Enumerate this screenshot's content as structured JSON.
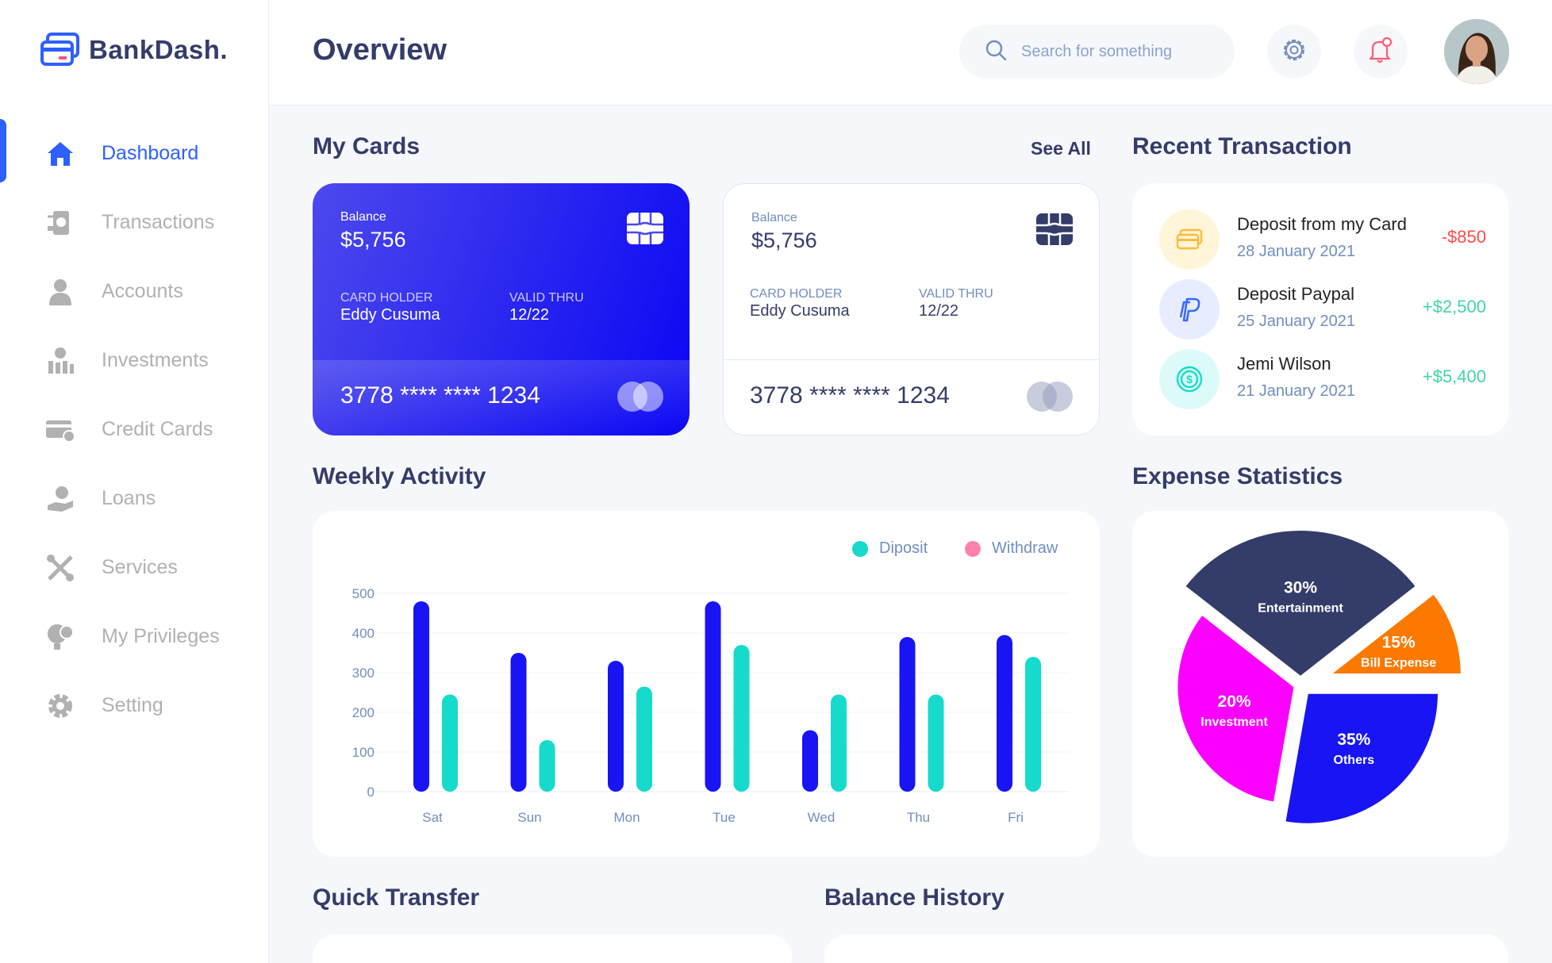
{
  "app": {
    "brand": "BankDash."
  },
  "sidebar": {
    "items": [
      {
        "label": "Dashboard",
        "icon": "home-icon",
        "active": true
      },
      {
        "label": "Transactions",
        "icon": "transfer-icon"
      },
      {
        "label": "Accounts",
        "icon": "user-icon"
      },
      {
        "label": "Investments",
        "icon": "economic-investment-icon"
      },
      {
        "label": "Credit Cards",
        "icon": "credit-card-icon"
      },
      {
        "label": "Loans",
        "icon": "loan-icon"
      },
      {
        "label": "Services",
        "icon": "service-icon"
      },
      {
        "label": "My Privileges",
        "icon": "econometrics-icon"
      },
      {
        "label": "Setting",
        "icon": "settings-icon"
      }
    ]
  },
  "header": {
    "title": "Overview",
    "search_placeholder": "Search for something"
  },
  "my_cards": {
    "title": "My Cards",
    "see_all": "See All",
    "cards": [
      {
        "balance_label": "Balance",
        "balance": "$5,756",
        "holder_label": "CARD HOLDER",
        "holder": "Eddy Cusuma",
        "valid_label": "VALID THRU",
        "valid": "12/22",
        "number": "3778 **** **** 1234"
      },
      {
        "balance_label": "Balance",
        "balance": "$5,756",
        "holder_label": "CARD HOLDER",
        "holder": "Eddy Cusuma",
        "valid_label": "VALID THRU",
        "valid": "12/22",
        "number": "3778 **** **** 1234"
      }
    ]
  },
  "recent_transaction": {
    "title": "Recent Transaction",
    "items": [
      {
        "title": "Deposit from my Card",
        "date": "28 January 2021",
        "amount": "-$850",
        "icon": "card-icon",
        "color": "#ff4b4a"
      },
      {
        "title": "Deposit Paypal",
        "date": "25 January 2021",
        "amount": "+$2,500",
        "icon": "paypal-icon",
        "color": "#41d4a8"
      },
      {
        "title": "Jemi Wilson",
        "date": "21 January 2021",
        "amount": "+$5,400",
        "icon": "dollar-coin-icon",
        "color": "#41d4a8"
      }
    ]
  },
  "weekly_activity": {
    "title": "Weekly Activity"
  },
  "expense_statistics": {
    "title": "Expense Statistics"
  },
  "quick_transfer": {
    "title": "Quick Transfer"
  },
  "balance_history": {
    "title": "Balance History"
  },
  "chart_data": [
    {
      "type": "bar",
      "categories": [
        "Sat",
        "Sun",
        "Mon",
        "Tue",
        "Wed",
        "Thu",
        "Fri"
      ],
      "series": [
        {
          "name": "Diposit",
          "color": "#1814f3",
          "values": [
            480,
            350,
            330,
            480,
            155,
            390,
            395
          ]
        },
        {
          "name": "Withdraw",
          "color": "#16dbcc",
          "values": [
            245,
            130,
            265,
            370,
            245,
            245,
            340
          ]
        }
      ],
      "legend_colors": [
        "#16dbcc",
        "#ff82ac"
      ],
      "ylim": [
        0,
        500
      ],
      "yticks": [
        0,
        100,
        200,
        300,
        400,
        500
      ],
      "grid": true,
      "legend": "top-right"
    },
    {
      "type": "pie",
      "slices": [
        {
          "label": "Entertainment",
          "value": 30,
          "color": "#343c6a"
        },
        {
          "label": "Bill Expense",
          "value": 15,
          "color": "#fc7900"
        },
        {
          "label": "Others",
          "value": 35,
          "color": "#1814f3"
        },
        {
          "label": "Investment",
          "value": 20,
          "color": "#fa00ff"
        }
      ]
    }
  ]
}
